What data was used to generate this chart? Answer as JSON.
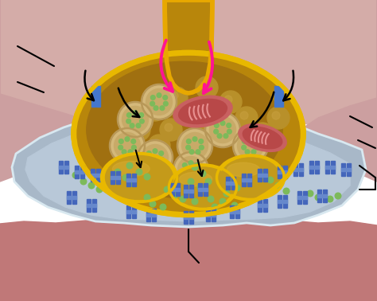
{
  "bg_color": "#f0e8e0",
  "top_tissue_color": "#d4b0b0",
  "bottom_muscle_color": "#c08888",
  "muscle_gray_color": "#a8b8c8",
  "muscle_gray_inner": "#b8c8d8",
  "muscle_outline_color": "#c8d8e8",
  "axon_fill": "#b8860b",
  "axon_outline": "#e8a800",
  "terminal_fill": "#c49a1a",
  "terminal_outline": "#e8b800",
  "vesicle_outer": "#d4b896",
  "vesicle_inner": "#c8a870",
  "vesicle_dots": "#7dba5a",
  "large_vesicle": "#c4a870",
  "mito_outer": "#c86060",
  "mito_inner": "#a84040",
  "mito_cristae": "#e08080",
  "receptor_color": "#4466bb",
  "arrow_pink": "#ff1493",
  "arrow_black": "#111111",
  "dot_color": "#7dba5a",
  "ca_channel_color": "#5577cc",
  "fold_fill": "#c49a1a",
  "fold_outline": "#e8b800"
}
